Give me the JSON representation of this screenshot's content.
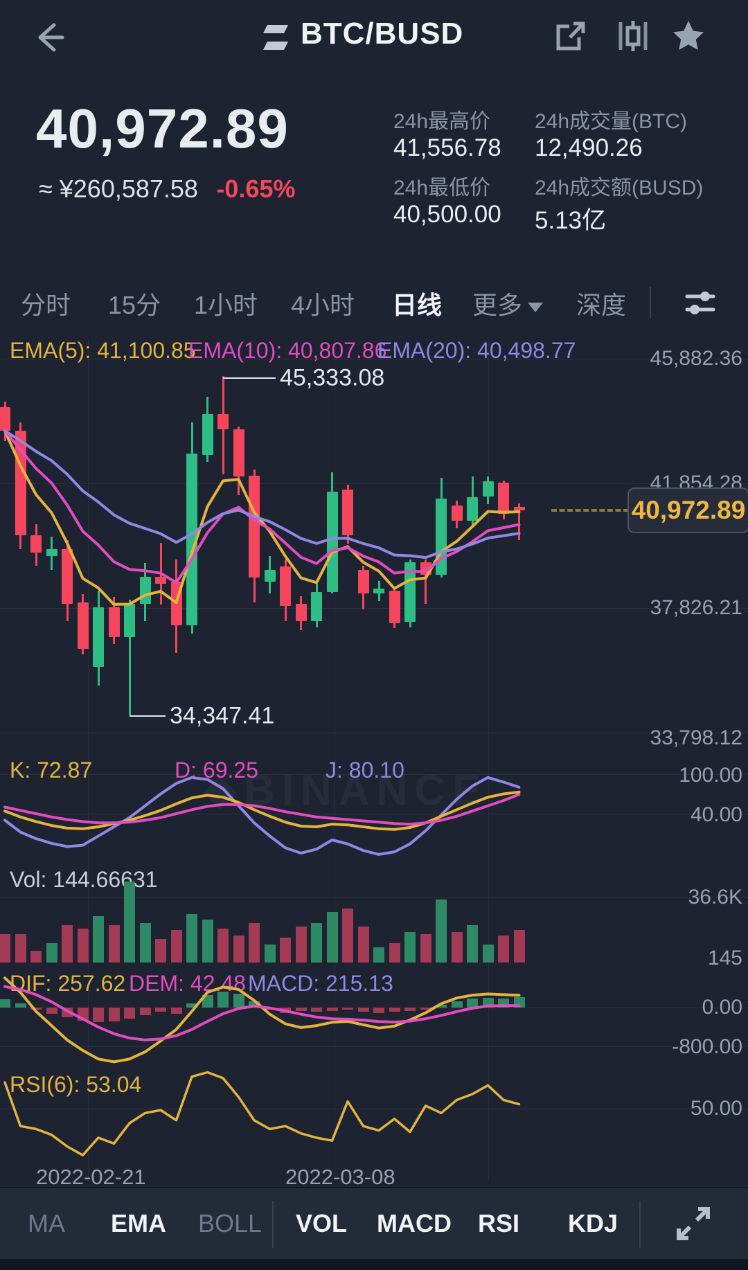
{
  "colors": {
    "background": "#1d2330",
    "up_green": "#2ebd85",
    "down_red": "#f6465d",
    "vol_green": "#2e8a64",
    "vol_red": "#a23b53",
    "yellow_line": "#e3b33c",
    "magenta_line": "#e14cc0",
    "purple_line": "#9286e2",
    "axis_text": "#97a1b2",
    "tag_yellow": "#eeb73f"
  },
  "header": {
    "back_icon": "back-arrow",
    "pair_title": "BTC/BUSD",
    "icons": [
      "swap-pair",
      "share-export",
      "candle-style",
      "favorite-star"
    ]
  },
  "price": {
    "last": "40,972.89",
    "fiat": "≈ ¥260,587.58",
    "change_pct": "-0.65%"
  },
  "stats": [
    {
      "label": "24h最高价",
      "value": "41,556.78"
    },
    {
      "label": "24h成交量(BTC)",
      "value": "12,490.26"
    },
    {
      "label": "24h最低价",
      "value": "40,500.00"
    },
    {
      "label": "24h成交额(BUSD)",
      "value": "5.13亿"
    }
  ],
  "interval_tabs": {
    "items": [
      "分时",
      "15分",
      "1小时",
      "4小时",
      "日线",
      "更多",
      "深度"
    ],
    "active": "日线",
    "more_has_caret": true
  },
  "watermark": "BINANCE",
  "bottom_toolbar": {
    "overlay_items": [
      "MA",
      "EMA",
      "BOLL"
    ],
    "overlay_active": "EMA",
    "indicator_items": [
      "VOL",
      "MACD",
      "RSI",
      "KDJ"
    ],
    "indicator_active": [
      "VOL",
      "MACD",
      "RSI",
      "KDJ"
    ],
    "expand_icon": "fullscreen-expand"
  },
  "chart_data": {
    "type": "candlestick-with-indicators",
    "pair": "BTC/BUSD",
    "interval": "daily",
    "ema_labels": [
      {
        "text": "EMA(5): 41,100.85",
        "period": 5,
        "value": 41100.85
      },
      {
        "text": "EMA(10): 40,807.86",
        "period": 10,
        "value": 40807.86
      },
      {
        "text": "EMA(20): 40,498.77",
        "period": 20,
        "value": 40498.77
      }
    ],
    "price_axis": {
      "labels": [
        "45,882.36",
        "41,854.28",
        "37,826.21",
        "33,798.12"
      ],
      "values": [
        45882.36,
        41854.28,
        37826.21,
        33798.12
      ]
    },
    "annotations": {
      "high": {
        "text": "45,333.08",
        "value": 45333.08,
        "candle_index": 14
      },
      "low": {
        "text": "34,347.41",
        "value": 34347.41,
        "candle_index": 8
      },
      "last_price": {
        "text": "40,972.89",
        "value": 40972.89
      }
    },
    "candles_ohlcv": [
      [
        44316,
        44500,
        43219,
        43555,
        16
      ],
      [
        43555,
        43824,
        39729,
        40176,
        16
      ],
      [
        40176,
        40534,
        39192,
        39617,
        6.5
      ],
      [
        39505,
        40131,
        39057,
        39729,
        11
      ],
      [
        39729,
        40019,
        37402,
        37961,
        21
      ],
      [
        38005,
        38273,
        36326,
        36505,
        19
      ],
      [
        35925,
        38385,
        35321,
        37849,
        26
      ],
      [
        37849,
        38184,
        36663,
        36887,
        21
      ],
      [
        36887,
        38100,
        34347.41,
        37961,
        45
      ],
      [
        37961,
        39281,
        37402,
        38833,
        22
      ],
      [
        38833,
        39930,
        37938,
        38609,
        13
      ],
      [
        38676,
        39393,
        36371,
        37267,
        18
      ],
      [
        37267,
        43824,
        36999,
        42817,
        27
      ],
      [
        42772,
        44651,
        42548,
        44092,
        24
      ],
      [
        44092,
        45333.08,
        42145,
        43600,
        19
      ],
      [
        43600,
        43700,
        41474,
        42078,
        15
      ],
      [
        42100,
        42300,
        38000,
        38800,
        22
      ],
      [
        38676,
        39500,
        38300,
        39057,
        10
      ],
      [
        39169,
        39400,
        37402,
        37894,
        14
      ],
      [
        37961,
        38200,
        37100,
        37402,
        20
      ],
      [
        37402,
        38600,
        37200,
        38341,
        22
      ],
      [
        38341,
        42212,
        38296,
        41586,
        28
      ],
      [
        41653,
        41800,
        39900,
        40176,
        30
      ],
      [
        39057,
        39200,
        37782,
        38296,
        20
      ],
      [
        38296,
        38700,
        38050,
        38450,
        8.5
      ],
      [
        38385,
        38500,
        37178,
        37335,
        11
      ],
      [
        37379,
        39400,
        37200,
        39303,
        17
      ],
      [
        39303,
        39400,
        37961,
        38900,
        16
      ],
      [
        38900,
        42033,
        38800,
        41362,
        35
      ],
      [
        41138,
        41300,
        40400,
        40646,
        17
      ],
      [
        40646,
        42078,
        40500,
        41407,
        21
      ],
      [
        41429,
        42078,
        41183,
        41922,
        10
      ],
      [
        41877,
        41950,
        40700,
        40870,
        15
      ],
      [
        41100,
        41200,
        40019,
        40972.89,
        18
      ]
    ],
    "kdj": {
      "labels": [
        {
          "text": "K: 72.87",
          "value": 72.87
        },
        {
          "text": "D: 69.25",
          "value": 69.25
        },
        {
          "text": "J: 80.10",
          "value": 80.1
        }
      ],
      "axis_labels": [
        "100.00",
        "40.00"
      ],
      "axis_values": [
        100,
        40
      ],
      "k": [
        44,
        35,
        28,
        22,
        18,
        17,
        20,
        25,
        30,
        37,
        45,
        55,
        64,
        68,
        65,
        57,
        46,
        36,
        27,
        21,
        20,
        24,
        23,
        20,
        17,
        16,
        19,
        26,
        36,
        46,
        56,
        65,
        70,
        72.87
      ],
      "d": [
        50,
        45,
        40,
        35,
        31,
        28,
        26,
        26,
        27,
        30,
        34,
        40,
        46,
        51,
        54,
        54,
        52,
        48,
        43,
        39,
        35,
        33,
        31,
        29,
        27,
        25,
        24,
        26,
        30,
        36,
        44,
        52,
        60,
        69.25
      ],
      "j": [
        30,
        12,
        2,
        -5,
        -10,
        -8,
        6,
        20,
        34,
        52,
        70,
        86,
        95,
        92,
        78,
        52,
        26,
        6,
        -12,
        -20,
        -14,
        0,
        -6,
        -16,
        -22,
        -18,
        -6,
        14,
        38,
        62,
        82,
        95,
        88,
        80.1
      ]
    },
    "volume": {
      "label": "Vol: 144.66631",
      "current": 144.66631,
      "axis_labels": [
        "36.6K",
        "145"
      ],
      "axis_values": [
        36600,
        145
      ]
    },
    "macd": {
      "labels": [
        {
          "text": "DIF: 257.62",
          "value": 257.62
        },
        {
          "text": "DEM: 42.48",
          "value": 42.48
        },
        {
          "text": "MACD: 215.13",
          "value": 215.13
        }
      ],
      "axis_labels": [
        "0.00",
        "-800.00"
      ],
      "axis_values": [
        0,
        -800
      ],
      "dif": [
        620,
        320,
        -80,
        -380,
        -680,
        -900,
        -1080,
        -1140,
        -1080,
        -930,
        -700,
        -460,
        -80,
        320,
        430,
        380,
        150,
        -140,
        -340,
        -420,
        -380,
        -310,
        -290,
        -360,
        -430,
        -390,
        -260,
        -110,
        80,
        200,
        260,
        285,
        270,
        257.62
      ],
      "dem": [
        440,
        380,
        270,
        120,
        -70,
        -240,
        -410,
        -550,
        -640,
        -680,
        -660,
        -590,
        -460,
        -290,
        -130,
        -20,
        30,
        -10,
        -70,
        -140,
        -200,
        -235,
        -245,
        -265,
        -295,
        -305,
        -285,
        -235,
        -165,
        -85,
        -15,
        35,
        40,
        42.48
      ],
      "hist": [
        180,
        90,
        -50,
        -130,
        -210,
        -270,
        -310,
        -290,
        -230,
        -160,
        -80,
        -130,
        80,
        260,
        340,
        290,
        130,
        -50,
        -110,
        -70,
        -90,
        -70,
        -50,
        -90,
        -110,
        -90,
        -70,
        -45,
        60,
        130,
        190,
        210,
        195,
        215.13
      ]
    },
    "rsi": {
      "label": "RSI(6): 53.04",
      "current": 53.04,
      "axis_labels": [
        "50.00"
      ],
      "axis_values": [
        50
      ],
      "values": [
        68,
        38,
        36,
        32,
        24,
        18,
        30,
        26,
        40,
        47,
        49,
        42,
        72,
        75,
        71,
        58,
        42,
        36,
        38,
        33,
        30,
        28,
        55,
        38,
        35,
        43,
        34,
        52,
        47,
        56,
        60,
        66,
        56,
        53.04
      ]
    },
    "x_axis_dates": [
      "2022-02-21",
      "2022-03-08"
    ]
  }
}
